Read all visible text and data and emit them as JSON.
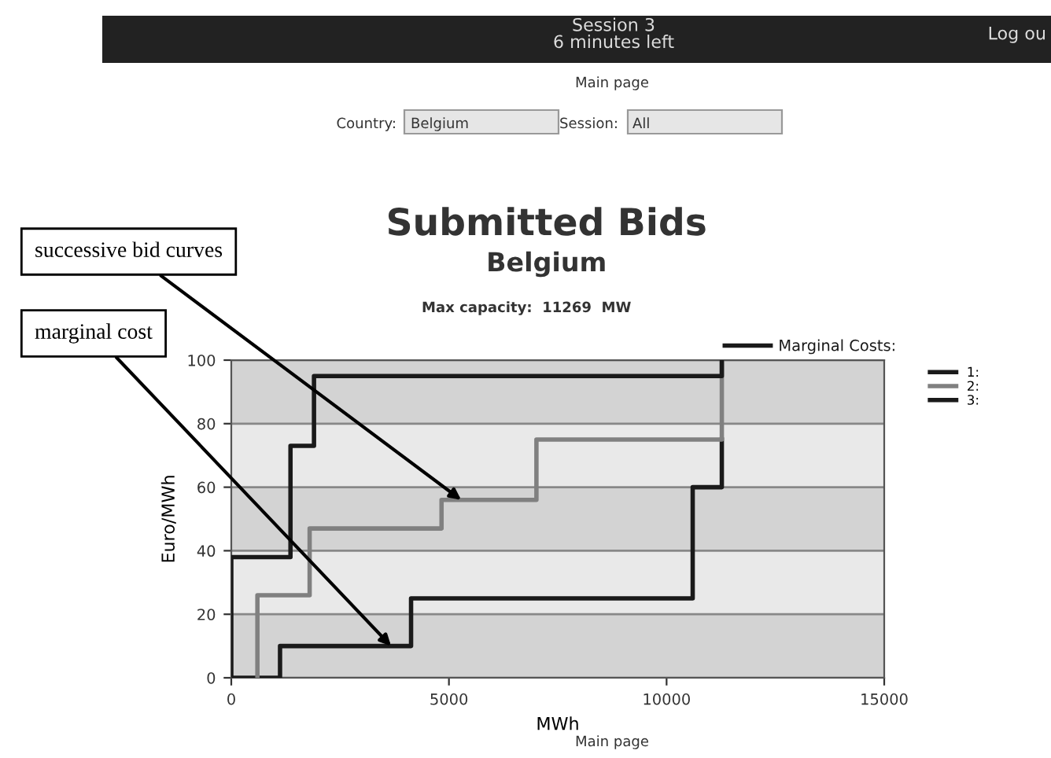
{
  "chart_data": {
    "type": "step",
    "title": "Submitted Bids",
    "subtitle": "Belgium",
    "xlabel": "MWh",
    "ylabel": "Euro/MWh",
    "xlim": [
      0,
      15000
    ],
    "xticks": [
      0,
      5000,
      10000,
      15000
    ],
    "ylim": [
      0,
      100
    ],
    "yticks": [
      0,
      20,
      40,
      60,
      80,
      100
    ],
    "grid": "y",
    "legend": "top right",
    "bands": [
      {
        "axis": "y",
        "from": 0,
        "to": 20,
        "color": "#d3d3d3"
      },
      {
        "axis": "y",
        "from": 20,
        "to": 40,
        "color": "#e9e9e9"
      },
      {
        "axis": "y",
        "from": 40,
        "to": 60,
        "color": "#d3d3d3"
      },
      {
        "axis": "y",
        "from": 60,
        "to": 80,
        "color": "#e9e9e9"
      },
      {
        "axis": "y",
        "from": 80,
        "to": 100,
        "color": "#d3d3d3"
      }
    ],
    "series": [
      {
        "name": "Marginal Costs:",
        "color": "#1a1a1a",
        "x": [
          0,
          1120,
          4130,
          10600,
          11269
        ],
        "values": [
          0,
          10,
          25,
          60,
          75
        ]
      },
      {
        "name": "1:",
        "color": "#1a1a1a"
      },
      {
        "name": "2:",
        "color": "#808080",
        "x": [
          600,
          600,
          1800,
          4830,
          7010,
          11269
        ],
        "values": [
          0,
          26,
          47,
          56,
          75,
          100
        ]
      },
      {
        "name": "3:",
        "color": "#1a1a1a",
        "x": [
          0,
          0,
          1360,
          1900,
          11269
        ],
        "values": [
          0,
          38,
          73,
          95,
          100
        ]
      }
    ],
    "annotations": [
      "Session 3\n6 minutes left",
      "Log ou",
      "Main page",
      "Country:",
      "Belgium",
      "Session:",
      "All",
      "Max capacity:  11269  MW",
      "Main page",
      {
        "text": "successive bid curves",
        "x": 5280,
        "y": 56
      },
      {
        "text": "marginal cost",
        "x": 3670,
        "y": 10
      }
    ]
  }
}
